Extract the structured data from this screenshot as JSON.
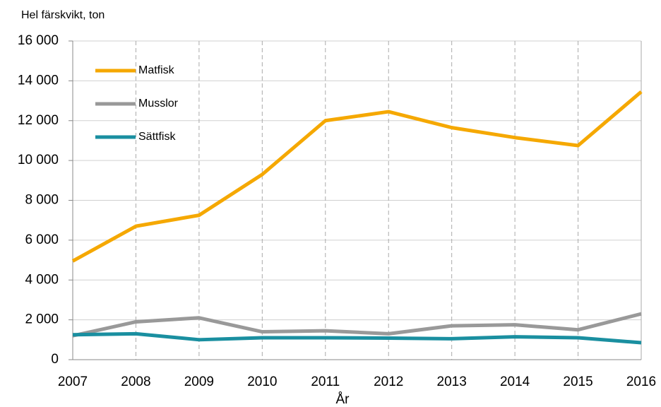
{
  "chart_data": {
    "type": "line",
    "y_label": "Hel färskvikt, ton",
    "x_label": "År",
    "categories": [
      "2007",
      "2008",
      "2009",
      "2010",
      "2011",
      "2012",
      "2013",
      "2014",
      "2015",
      "2016"
    ],
    "series": [
      {
        "name": "Matfisk",
        "color": "#f5a800",
        "values": [
          4950,
          6700,
          7250,
          9300,
          12000,
          12450,
          11650,
          11150,
          10750,
          13450
        ]
      },
      {
        "name": "Musslor",
        "color": "#999999",
        "values": [
          1200,
          1900,
          2100,
          1400,
          1450,
          1300,
          1700,
          1750,
          1500,
          2300
        ]
      },
      {
        "name": "Sättfisk",
        "color": "#1a8fa0",
        "values": [
          1250,
          1300,
          1000,
          1100,
          1100,
          1080,
          1050,
          1150,
          1100,
          850
        ]
      }
    ],
    "ylim": [
      0,
      16000
    ],
    "yticks": [
      0,
      {
        "value": 2000,
        "label": "2 000"
      },
      {
        "value": 4000,
        "label": "4 000"
      },
      {
        "value": 6000,
        "label": "6 000"
      },
      {
        "value": 8000,
        "label": "8 000"
      },
      {
        "value": 10000,
        "label": "10 000"
      },
      {
        "value": 12000,
        "label": "12 000"
      },
      {
        "value": 14000,
        "label": "14 000"
      },
      {
        "value": 16000,
        "label": "16 000"
      }
    ],
    "grid": true,
    "legend": "upper left"
  }
}
